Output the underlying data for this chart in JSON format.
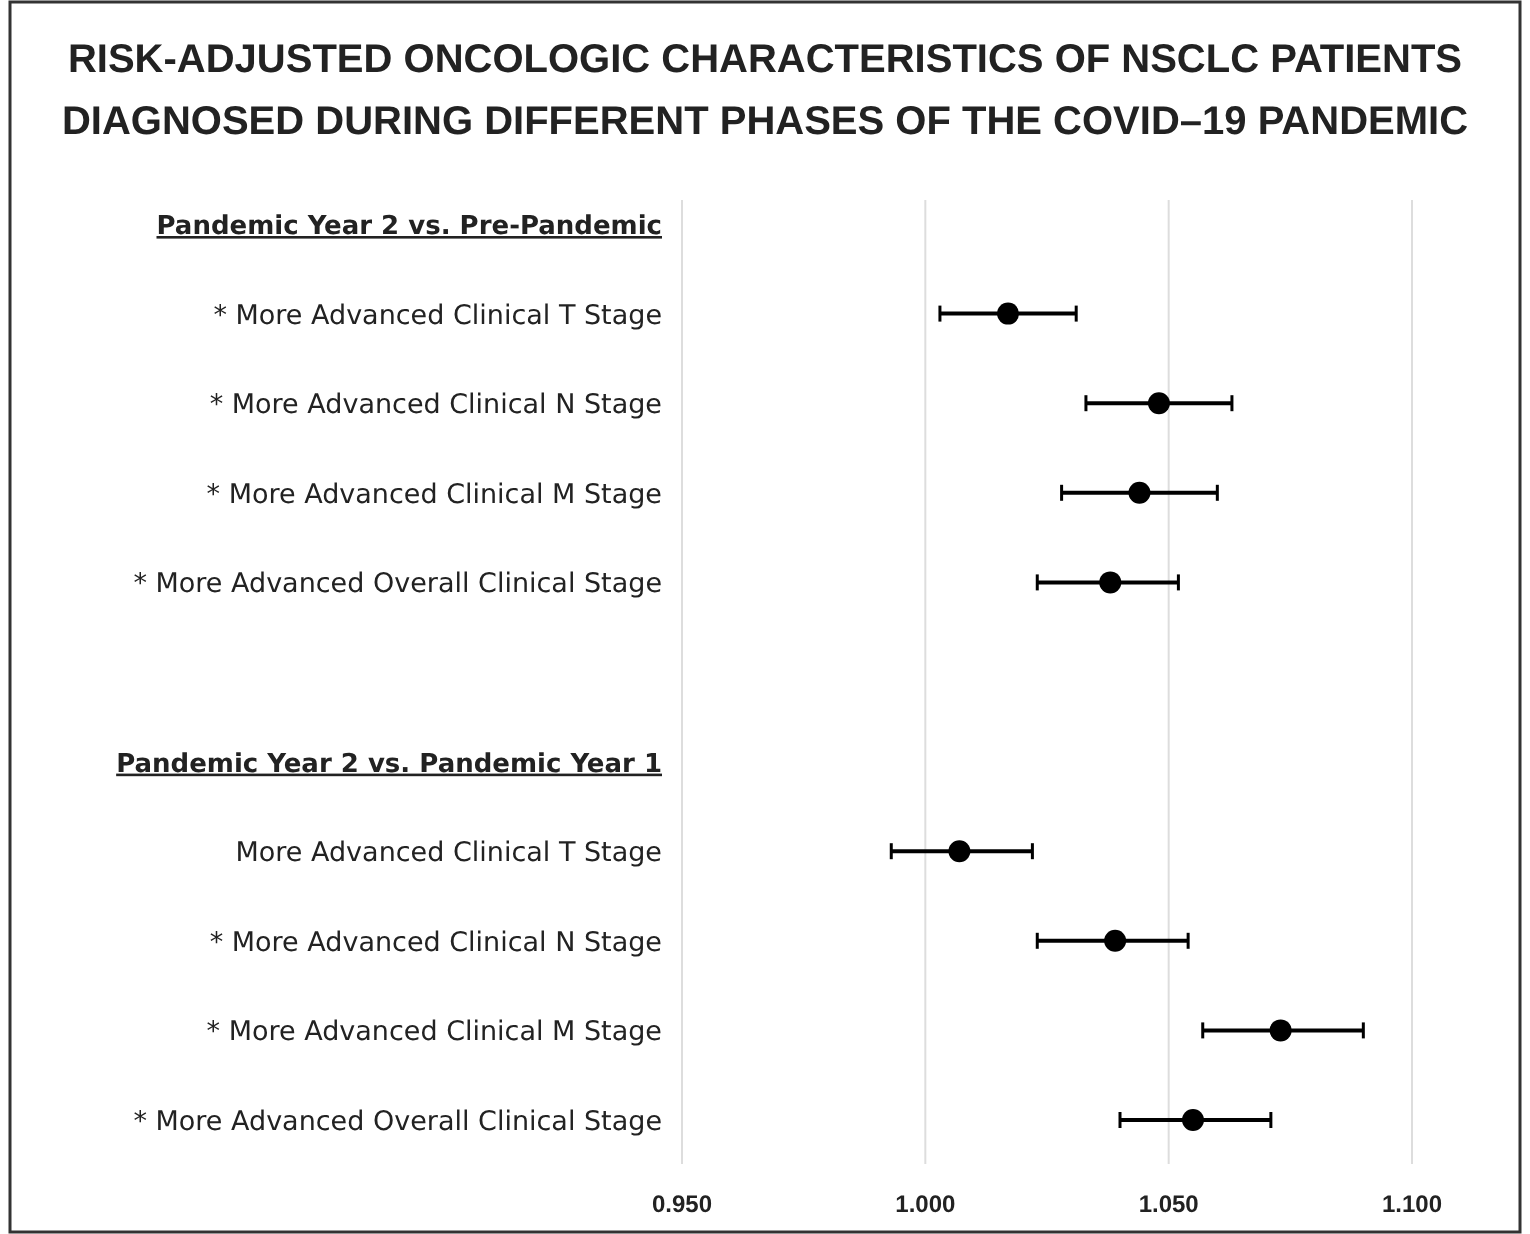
{
  "chart_data": {
    "type": "scatter",
    "orientation": "horizontal",
    "title": "RISK-ADJUSTED ONCOLOGIC CHARACTERISTICS OF NSCLC PATIENTS DIAGNOSED DURING DIFFERENT PHASES OF THE COVID–19 PANDEMIC",
    "categories": [
      "Pandemic Year 2 vs. Pre-Pandemic",
      "* More Advanced Clinical T Stage",
      "* More Advanced Clinical N Stage",
      "* More Advanced Clinical M Stage",
      "* More Advanced Overall Clinical Stage",
      null,
      "Pandemic Year 2 vs. Pandemic Year 1",
      "More Advanced Clinical T Stage",
      "* More Advanced Clinical N Stage",
      "* More Advanced Clinical M Stage",
      "* More Advanced Overall Clinical Stage"
    ],
    "series": [
      {
        "color": "#000000",
        "values": [
          null,
          1.017,
          1.048,
          1.044,
          1.038,
          null,
          null,
          1.007,
          1.039,
          1.073,
          1.055
        ],
        "errors": [
          null,
          [
            1.003,
            1.031
          ],
          [
            1.033,
            1.063
          ],
          [
            1.028,
            1.06
          ],
          [
            1.023,
            1.052
          ],
          null,
          null,
          [
            0.993,
            1.022
          ],
          [
            1.023,
            1.054
          ],
          [
            1.057,
            1.09
          ],
          [
            1.04,
            1.071
          ]
        ]
      }
    ],
    "xlim": [
      0.95,
      1.1
    ],
    "xticks": [
      {
        "value": 0.95,
        "label": "0.950"
      },
      {
        "value": 1.0,
        "label": "1.000"
      },
      {
        "value": 1.05,
        "label": "1.050"
      },
      {
        "value": 1.1,
        "label": "1.100"
      }
    ],
    "grid": "x",
    "marker": "circle"
  }
}
